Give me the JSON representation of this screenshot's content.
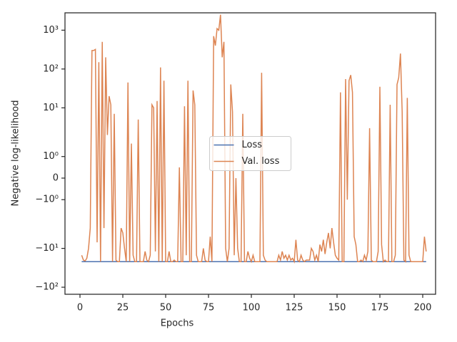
{
  "chart_data": {
    "type": "line",
    "xlabel": "Epochs",
    "ylabel": "Negative log-likelihood",
    "yscale": "symlog",
    "linthresh": 2,
    "xlim": [
      -8.75,
      207.5
    ],
    "ylim": [
      -152,
      2800
    ],
    "xticks": [
      0,
      25,
      50,
      75,
      100,
      125,
      150,
      175,
      200
    ],
    "yticks": [
      {
        "value": -100,
        "label": "−10²"
      },
      {
        "value": -10,
        "label": "−10¹"
      },
      {
        "value": -1,
        "label": "−10⁰"
      },
      0,
      {
        "value": 1,
        "label": "10⁰"
      },
      {
        "value": 10,
        "label": "10¹"
      },
      {
        "value": 100,
        "label": "10²"
      },
      {
        "value": 1000,
        "label": "10³"
      }
    ],
    "legend": "center",
    "x": [
      1,
      2,
      3,
      4,
      5,
      6,
      7,
      8,
      9,
      10,
      11,
      12,
      13,
      14,
      15,
      16,
      17,
      18,
      19,
      20,
      21,
      22,
      23,
      24,
      25,
      26,
      27,
      28,
      29,
      30,
      31,
      32,
      33,
      34,
      35,
      36,
      37,
      38,
      39,
      40,
      41,
      42,
      43,
      44,
      45,
      46,
      47,
      48,
      49,
      50,
      51,
      52,
      53,
      54,
      55,
      56,
      57,
      58,
      59,
      60,
      61,
      62,
      63,
      64,
      65,
      66,
      67,
      68,
      69,
      70,
      71,
      72,
      73,
      74,
      75,
      76,
      77,
      78,
      79,
      80,
      81,
      82,
      83,
      84,
      85,
      86,
      87,
      88,
      89,
      90,
      91,
      92,
      93,
      94,
      95,
      96,
      97,
      98,
      99,
      100,
      101,
      102,
      103,
      104,
      105,
      106,
      107,
      108,
      109,
      110,
      111,
      112,
      113,
      114,
      115,
      116,
      117,
      118,
      119,
      120,
      121,
      122,
      123,
      124,
      125,
      126,
      127,
      128,
      129,
      130,
      131,
      132,
      133,
      134,
      135,
      136,
      137,
      138,
      139,
      140,
      141,
      142,
      143,
      144,
      145,
      146,
      147,
      148,
      149,
      150,
      151,
      152,
      153,
      154,
      155,
      156,
      157,
      158,
      159,
      160,
      161,
      162,
      163,
      164,
      165,
      166,
      167,
      168,
      169,
      170,
      171,
      172,
      173,
      174,
      175,
      176,
      177,
      178,
      179,
      180,
      181,
      182,
      183,
      184,
      185,
      186,
      187,
      188,
      189,
      190,
      191,
      192,
      193,
      194,
      195,
      196,
      197,
      198,
      199,
      200,
      201,
      202
    ],
    "series": [
      {
        "name": "Loss",
        "color": "#4c72b0",
        "values": [
          -22,
          -22,
          -22,
          -22,
          -22,
          -22,
          -22,
          -22,
          -22,
          -22,
          -22,
          -22,
          -22,
          -22,
          -22,
          -22,
          -22,
          -22,
          -22,
          -22,
          -22,
          -22,
          -22,
          -22,
          -22,
          -22,
          -22,
          -22,
          -22,
          -22,
          -22,
          -22,
          -22,
          -22,
          -22,
          -22,
          -22,
          -22,
          -22,
          -22,
          -22,
          -22,
          -22,
          -22,
          -22,
          -22,
          -22,
          -22,
          -22,
          -22,
          -22,
          -22,
          -22,
          -22,
          -22,
          -22,
          -22,
          -22,
          -22,
          -22,
          -22,
          -22,
          -22,
          -22,
          -22,
          -22,
          -22,
          -22,
          -22,
          -22,
          -22,
          -22,
          -22,
          -22,
          -22,
          -22,
          -22,
          -22,
          -22,
          -22,
          -22,
          -22,
          -22,
          -22,
          -22,
          -22,
          -22,
          -22,
          -22,
          -22,
          -22,
          -22,
          -22,
          -22,
          -22,
          -22,
          -22,
          -22,
          -22,
          -22,
          -22,
          -22,
          -22,
          -22,
          -22,
          -22,
          -22,
          -22,
          -22,
          -22,
          -22,
          -22,
          -22,
          -22,
          -22,
          -22,
          -22,
          -22,
          -22,
          -22,
          -22,
          -22,
          -22,
          -22,
          -22,
          -22,
          -22,
          -22,
          -22,
          -22,
          -22,
          -22,
          -22,
          -22,
          -22,
          -22,
          -22,
          -22,
          -22,
          -22,
          -22,
          -22,
          -22,
          -22,
          -22,
          -22,
          -22,
          -22,
          -22,
          -22,
          -22,
          -22,
          -22,
          -22,
          -22,
          -22,
          -22,
          -22,
          -22,
          -22,
          -22,
          -22,
          -22,
          -22,
          -22,
          -22,
          -22,
          -22,
          -22,
          -22,
          -22,
          -22,
          -22,
          -22,
          -22,
          -22,
          -22,
          -22,
          -22,
          -22,
          -22,
          -22,
          -22,
          -22,
          -22,
          -22,
          -22,
          -22,
          -22,
          -22,
          -22,
          -22,
          -22,
          -22,
          -22,
          -22,
          -22,
          -22,
          -22,
          -22,
          -22,
          -22
        ]
      },
      {
        "name": "Val. loss",
        "color": "#dd8452",
        "values": [
          -15,
          -20,
          -21,
          -18,
          -10,
          -3,
          300,
          300,
          320,
          -7,
          150,
          -22,
          500,
          -3,
          200,
          2,
          20,
          12,
          -22,
          7,
          -20,
          -22,
          -22,
          -3,
          -4,
          -10,
          -22,
          45,
          -22,
          1.6,
          -15,
          -22,
          -22,
          5,
          -22,
          -22,
          -22,
          -12,
          -20,
          -22,
          -15,
          12,
          10,
          -12,
          15,
          -22,
          110,
          -22,
          50,
          -22,
          -22,
          -12,
          -22,
          -22,
          -20,
          -22,
          -22,
          0.5,
          -22,
          -22,
          11,
          -15,
          50,
          -22,
          -22,
          28,
          12,
          -15,
          -22,
          -22,
          -22,
          -10,
          -20,
          -22,
          -22,
          -5,
          -22,
          700,
          400,
          1100,
          1000,
          2500,
          200,
          500,
          -10,
          -22,
          -10,
          40,
          8,
          -15,
          0,
          -10,
          -22,
          -22,
          7,
          -22,
          -22,
          -12,
          -18,
          -22,
          -15,
          -22,
          -22,
          -22,
          -22,
          80,
          -15,
          -20,
          -22,
          -22,
          -22,
          -22,
          -22,
          -22,
          -22,
          -15,
          -20,
          -12,
          -18,
          -15,
          -20,
          -15,
          -20,
          -18,
          -22,
          -6,
          -20,
          -22,
          -15,
          -20,
          -22,
          -20,
          -20,
          -20,
          -10,
          -12,
          -20,
          -15,
          -22,
          -8,
          -12,
          -6,
          -14,
          -7,
          -4,
          -10,
          -3,
          -7,
          -15,
          -18,
          -20,
          25,
          -22,
          -22,
          55,
          -1,
          50,
          70,
          25,
          -5,
          -8,
          -22,
          -22,
          -20,
          -22,
          -15,
          -20,
          -12,
          3,
          -20,
          -22,
          -22,
          -22,
          -12,
          35,
          -8,
          -22,
          -20,
          -22,
          -22,
          12,
          -22,
          -22,
          -15,
          40,
          60,
          250,
          8,
          -20,
          -22,
          18,
          -15,
          -22,
          -22,
          -22,
          -22,
          -22,
          -22,
          -22,
          -22,
          -5,
          -12
        ]
      }
    ]
  }
}
